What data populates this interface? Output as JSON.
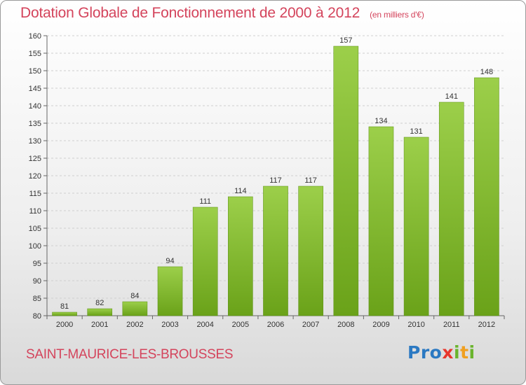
{
  "title": "Dotation Globale de Fonctionnement de 2000 à 2012",
  "unit": "(en milliers d'€)",
  "commune": "SAINT-MAURICE-LES-BROUSSES",
  "logo": {
    "letters": [
      "P",
      "r",
      "o",
      "x",
      "i",
      "t",
      "i"
    ],
    "colors": [
      "#2b79c2",
      "#2b79c2",
      "#2b79c2",
      "#e8362d",
      "#6ab42d",
      "#f0a020",
      "#6ab42d"
    ]
  },
  "colors": {
    "bar_top": "#9ccf4a",
    "bar_bottom": "#6aa219",
    "title": "#d4445c",
    "grid": "#cfcfcf"
  },
  "chart_data": {
    "type": "bar",
    "title": "Dotation Globale de Fonctionnement de 2000 à 2012",
    "categories": [
      "2000",
      "2001",
      "2002",
      "2003",
      "2004",
      "2005",
      "2006",
      "2007",
      "2008",
      "2009",
      "2010",
      "2011",
      "2012"
    ],
    "values": [
      81,
      82,
      84,
      94,
      111,
      114,
      117,
      117,
      157,
      134,
      131,
      141,
      148
    ],
    "ylim": [
      80,
      160
    ],
    "yticks": [
      80,
      85,
      90,
      95,
      100,
      105,
      110,
      115,
      120,
      125,
      130,
      135,
      140,
      145,
      150,
      155,
      160
    ],
    "grid": true,
    "xlabel": "",
    "ylabel": ""
  }
}
